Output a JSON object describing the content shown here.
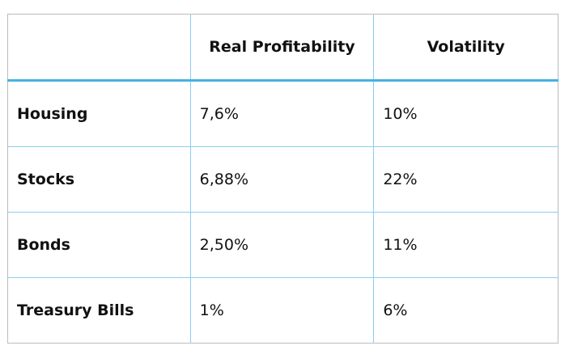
{
  "headers": [
    "",
    "Real Profitability",
    "Volatility"
  ],
  "rows": [
    {
      "asset": "Housing",
      "profitability": "7,6%",
      "volatility": "10%"
    },
    {
      "asset": "Stocks",
      "profitability": "6,88%",
      "volatility": "22%"
    },
    {
      "asset": "Bonds",
      "profitability": "2,50%",
      "volatility": "11%"
    },
    {
      "asset": "Treasury Bills",
      "profitability": "1%",
      "volatility": "6%"
    }
  ]
}
